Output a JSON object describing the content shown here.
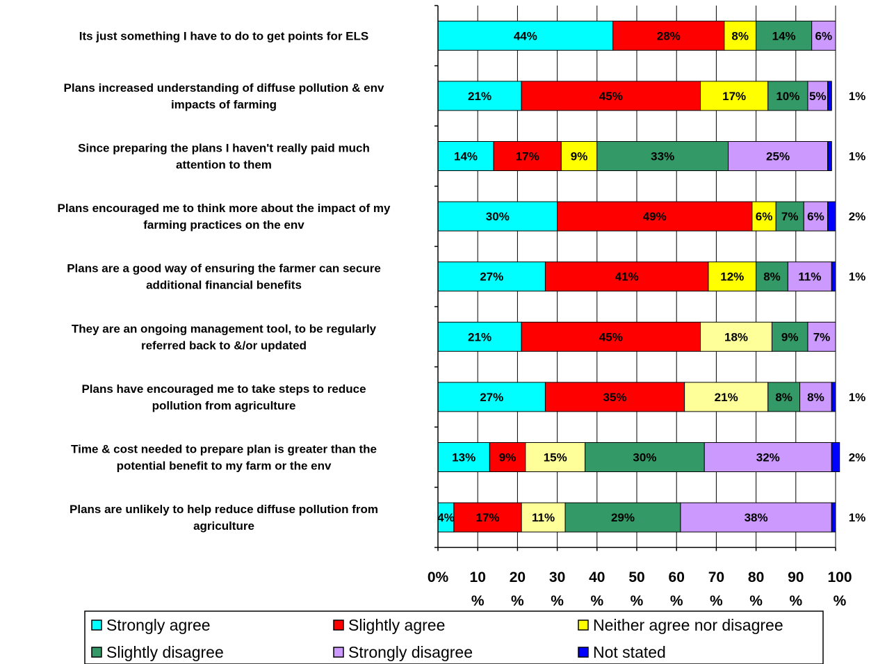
{
  "chart_data": {
    "type": "bar",
    "orientation": "horizontal",
    "stacked": true,
    "categories": [
      "Its just something I have to do to get points for ELS",
      "Plans increased understanding of diffuse pollution & env impacts of farming",
      "Since preparing the plans I haven't really paid much attention to them",
      "Plans encouraged me to think more about the impact of my farming practices on the env",
      "Plans are a good way of ensuring the farmer can secure additional financial benefits",
      "They are an ongoing management tool, to be regularly referred back to &/or updated",
      "Plans have encouraged me to take steps to reduce pollution from agriculture",
      "Time & cost needed to prepare plan is greater than the potential benefit to my farm or the env",
      "Plans are unlikely to help reduce diffuse pollution from agriculture"
    ],
    "category_lines": [
      [
        "Its just something I have to do to get points for ELS"
      ],
      [
        "Plans increased understanding of diffuse pollution & env",
        "impacts of farming"
      ],
      [
        "Since preparing the plans I haven't really paid much",
        "attention to them"
      ],
      [
        "Plans encouraged me to think more about the impact of my",
        "farming practices on the env"
      ],
      [
        "Plans are a good way of ensuring the farmer can secure",
        "additional financial benefits"
      ],
      [
        "They are an ongoing management tool, to be regularly",
        "referred back to &/or updated"
      ],
      [
        "Plans have encouraged me to take steps to reduce",
        "pollution from agriculture"
      ],
      [
        "Time & cost needed to prepare plan is greater than the",
        "potential benefit to my farm or the env"
      ],
      [
        "Plans are unlikely to help reduce diffuse pollution from",
        "agriculture"
      ]
    ],
    "series": [
      {
        "name": "Strongly agree",
        "color": "#00ffff",
        "values": [
          44,
          21,
          14,
          30,
          27,
          21,
          27,
          13,
          4
        ]
      },
      {
        "name": "Slightly agree",
        "color": "#ff0000",
        "values": [
          28,
          45,
          17,
          49,
          41,
          45,
          35,
          9,
          17
        ]
      },
      {
        "name": "Neither agree nor disagree",
        "color": "#ffff00",
        "values": [
          8,
          17,
          9,
          6,
          12,
          18,
          21,
          15,
          11
        ]
      },
      {
        "name": "Slightly disagree",
        "color": "#339966",
        "values": [
          14,
          10,
          33,
          7,
          8,
          9,
          8,
          30,
          29
        ]
      },
      {
        "name": "Strongly disagree",
        "color": "#cc99ff",
        "values": [
          6,
          5,
          25,
          6,
          11,
          7,
          8,
          32,
          38
        ]
      },
      {
        "name": "Not stated",
        "color": "#0000ff",
        "values": [
          0,
          1,
          1,
          2,
          1,
          0,
          1,
          2,
          1
        ]
      }
    ],
    "series_fill_overrides": {
      "Neither agree nor disagree": {
        "rows": [
          5,
          6,
          7,
          8
        ],
        "color": "#ffff99"
      }
    },
    "x_ticks": [
      [
        "0%"
      ],
      [
        "10",
        "%"
      ],
      [
        "20",
        "%"
      ],
      [
        "30",
        "%"
      ],
      [
        "40",
        "%"
      ],
      [
        "50",
        "%"
      ],
      [
        "60",
        "%"
      ],
      [
        "70",
        "%"
      ],
      [
        "80",
        "%"
      ],
      [
        "90",
        "%"
      ],
      [
        "100",
        "%"
      ]
    ],
    "xlim": [
      0,
      100
    ],
    "grid": true,
    "legend_position": "bottom"
  }
}
